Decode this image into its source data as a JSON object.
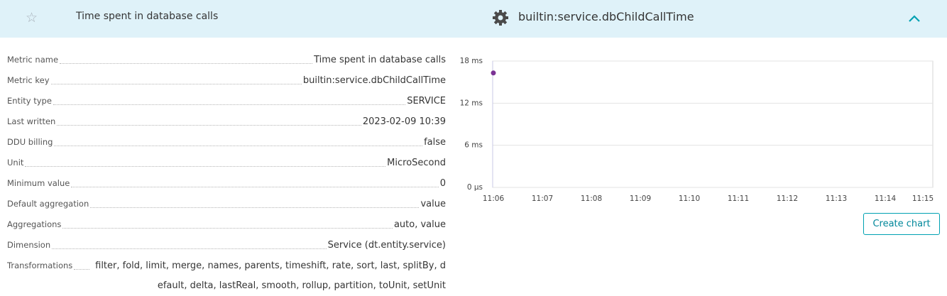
{
  "header": {
    "title": "Time spent in database calls",
    "metric_key": "builtin:service.dbChildCallTime"
  },
  "properties": [
    {
      "label": "Metric name",
      "value": "Time spent in database calls"
    },
    {
      "label": "Metric key",
      "value": "builtin:service.dbChildCallTime"
    },
    {
      "label": "Entity type",
      "value": "SERVICE"
    },
    {
      "label": "Last written",
      "value": "2023-02-09 10:39"
    },
    {
      "label": "DDU billing",
      "value": "false"
    },
    {
      "label": "Unit",
      "value": "MicroSecond"
    },
    {
      "label": "Minimum value",
      "value": "0"
    },
    {
      "label": "Default aggregation",
      "value": "value"
    },
    {
      "label": "Aggregations",
      "value": "auto, value"
    },
    {
      "label": "Dimension",
      "value": "Service (dt.entity.service)"
    },
    {
      "label": "Transformations",
      "value": "filter, fold, limit, merge, names, parents, timeshift, rate, sort, last, splitBy, default, delta, lastReal, smooth, rollup, partition, toUnit, setUnit"
    }
  ],
  "button": "Create chart",
  "chart_data": {
    "type": "line",
    "categories": [
      "11:06",
      "11:07",
      "11:08",
      "11:09",
      "11:10",
      "11:11",
      "11:12",
      "11:13",
      "11:14",
      "11:15"
    ],
    "series": [
      {
        "color": "#7b3294",
        "values": [
          16.3,
          null,
          null,
          null,
          null,
          null,
          null,
          null,
          null,
          null
        ]
      }
    ],
    "ylim": [
      0,
      18
    ],
    "yticks": [
      {
        "value": 0,
        "label": "0 µs"
      },
      {
        "value": 6,
        "label": "6 ms"
      },
      {
        "value": 12,
        "label": "12 ms"
      },
      {
        "value": 18,
        "label": "18 ms"
      }
    ],
    "grid": true
  }
}
